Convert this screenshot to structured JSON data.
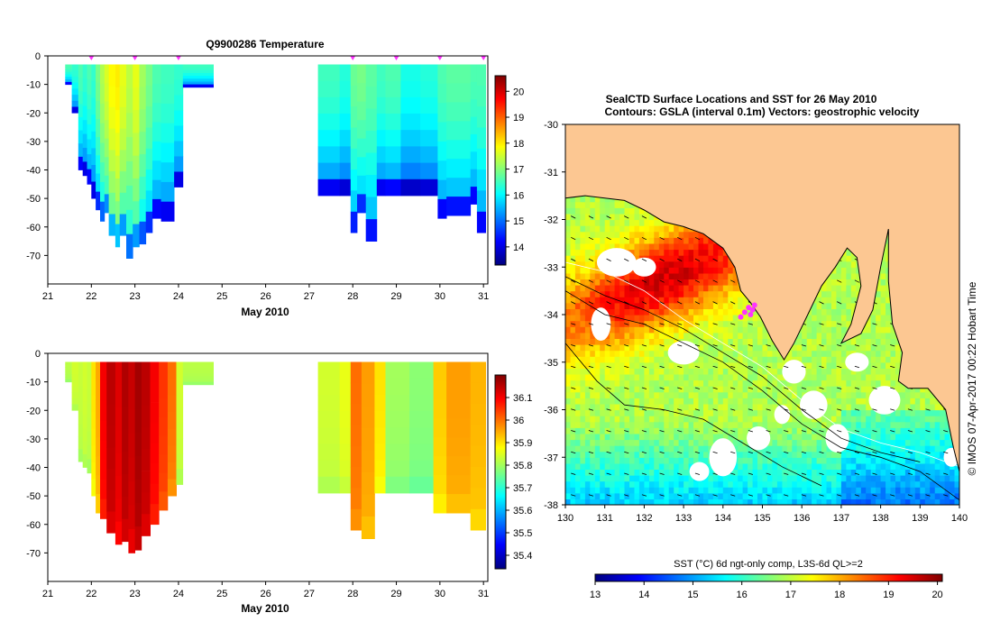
{
  "chart_data": [
    {
      "id": "temperature",
      "type": "heatmap",
      "title": "Q9900286  Temperature",
      "xlabel": "May 2010",
      "ylabel": "",
      "xlim": [
        21,
        31.1
      ],
      "ylim": [
        -80,
        0
      ],
      "x_ticks": [
        "21",
        "22",
        "23",
        "24",
        "25",
        "26",
        "27",
        "28",
        "29",
        "30",
        "31"
      ],
      "y_ticks": [
        "0",
        "-10",
        "-20",
        "-30",
        "-40",
        "-50",
        "-60",
        "-70"
      ],
      "colorbar": {
        "min": 13.3,
        "max": 20.6,
        "ticks": [
          "14",
          "15",
          "16",
          "17",
          "18",
          "19",
          "20"
        ],
        "tick_values": [
          14,
          15,
          16,
          17,
          18,
          19,
          20
        ]
      },
      "profile_markers_day": [
        22.0,
        23.0,
        24.0,
        28.0,
        29.0,
        30.0,
        31.0
      ],
      "columns": [
        {
          "x0": 21.4,
          "x1": 21.55,
          "depth": -10,
          "value": 16.6
        },
        {
          "x0": 21.55,
          "x1": 21.7,
          "depth": -20,
          "value": 16.4
        },
        {
          "x0": 21.7,
          "x1": 21.8,
          "depth": -40,
          "value": 16.6
        },
        {
          "x0": 21.8,
          "x1": 21.9,
          "depth": -42,
          "value": 16.4
        },
        {
          "x0": 21.9,
          "x1": 22.0,
          "depth": -45,
          "value": 16.6
        },
        {
          "x0": 22.0,
          "x1": 22.1,
          "depth": -50,
          "value": 16.4
        },
        {
          "x0": 22.1,
          "x1": 22.2,
          "depth": -54,
          "value": 16.9
        },
        {
          "x0": 22.2,
          "x1": 22.3,
          "depth": -58,
          "value": 17.3
        },
        {
          "x0": 22.3,
          "x1": 22.4,
          "depth": -55,
          "value": 17.6
        },
        {
          "x0": 22.4,
          "x1": 22.55,
          "depth": -63,
          "value": 17.9
        },
        {
          "x0": 22.55,
          "x1": 22.65,
          "depth": -67,
          "value": 18.0
        },
        {
          "x0": 22.65,
          "x1": 22.8,
          "depth": -63,
          "value": 17.7
        },
        {
          "x0": 22.8,
          "x1": 22.95,
          "depth": -71,
          "value": 17.4
        },
        {
          "x0": 22.95,
          "x1": 23.1,
          "depth": -67,
          "value": 17.7
        },
        {
          "x0": 23.1,
          "x1": 23.25,
          "depth": -66,
          "value": 17.2
        },
        {
          "x0": 23.25,
          "x1": 23.4,
          "depth": -62,
          "value": 16.9
        },
        {
          "x0": 23.4,
          "x1": 23.6,
          "depth": -57,
          "value": 16.6
        },
        {
          "x0": 23.6,
          "x1": 23.9,
          "depth": -58,
          "value": 16.5
        },
        {
          "x0": 23.9,
          "x1": 24.1,
          "depth": -46,
          "value": 16.4
        },
        {
          "x0": 24.1,
          "x1": 24.8,
          "depth": -11,
          "value": 16.5
        },
        {
          "x0": 27.2,
          "x1": 27.7,
          "depth": -49,
          "value": 16.5
        },
        {
          "x0": 27.7,
          "x1": 27.95,
          "depth": -49,
          "value": 16.3
        },
        {
          "x0": 27.95,
          "x1": 28.1,
          "depth": -62,
          "value": 16.8
        },
        {
          "x0": 28.1,
          "x1": 28.3,
          "depth": -55,
          "value": 16.9
        },
        {
          "x0": 28.3,
          "x1": 28.55,
          "depth": -65,
          "value": 16.7
        },
        {
          "x0": 28.55,
          "x1": 28.75,
          "depth": -49,
          "value": 16.5
        },
        {
          "x0": 28.75,
          "x1": 29.1,
          "depth": -49,
          "value": 16.6
        },
        {
          "x0": 29.1,
          "x1": 29.55,
          "depth": -49,
          "value": 16.2
        },
        {
          "x0": 29.55,
          "x1": 29.95,
          "depth": -49,
          "value": 16.3
        },
        {
          "x0": 29.95,
          "x1": 30.15,
          "depth": -57,
          "value": 16.6
        },
        {
          "x0": 30.15,
          "x1": 30.7,
          "depth": -56,
          "value": 16.7
        },
        {
          "x0": 30.7,
          "x1": 30.85,
          "depth": -52,
          "value": 16.6
        },
        {
          "x0": 30.85,
          "x1": 31.05,
          "depth": -62,
          "value": 16.6
        }
      ]
    },
    {
      "id": "salinity",
      "type": "heatmap",
      "title": "",
      "xlabel": "May 2010",
      "ylabel": "",
      "xlim": [
        21,
        31.1
      ],
      "ylim": [
        -80,
        0
      ],
      "x_ticks": [
        "21",
        "22",
        "23",
        "24",
        "25",
        "26",
        "27",
        "28",
        "29",
        "30",
        "31"
      ],
      "y_ticks": [
        "0",
        "-10",
        "-20",
        "-30",
        "-40",
        "-50",
        "-60",
        "-70"
      ],
      "colorbar": {
        "min": 35.34,
        "max": 36.2,
        "ticks": [
          "35.4",
          "35.5",
          "35.6",
          "35.7",
          "35.8",
          "35.9",
          "36",
          "36.1"
        ],
        "tick_values": [
          35.4,
          35.5,
          35.6,
          35.7,
          35.8,
          35.9,
          36.0,
          36.1
        ]
      },
      "columns": [
        {
          "x0": 21.4,
          "x1": 21.55,
          "depth": -10,
          "value": 35.82
        },
        {
          "x0": 21.55,
          "x1": 21.7,
          "depth": -20,
          "value": 35.84
        },
        {
          "x0": 21.7,
          "x1": 21.8,
          "depth": -38,
          "value": 35.83
        },
        {
          "x0": 21.8,
          "x1": 21.9,
          "depth": -40,
          "value": 35.84
        },
        {
          "x0": 21.9,
          "x1": 22.0,
          "depth": -42,
          "value": 35.83
        },
        {
          "x0": 22.0,
          "x1": 22.1,
          "depth": -50,
          "value": 35.9
        },
        {
          "x0": 22.1,
          "x1": 22.2,
          "depth": -56,
          "value": 35.95
        },
        {
          "x0": 22.2,
          "x1": 22.35,
          "depth": -58,
          "value": 36.1
        },
        {
          "x0": 22.35,
          "x1": 22.55,
          "depth": -63,
          "value": 36.15
        },
        {
          "x0": 22.55,
          "x1": 22.7,
          "depth": -67,
          "value": 36.12
        },
        {
          "x0": 22.7,
          "x1": 22.85,
          "depth": -66,
          "value": 36.16
        },
        {
          "x0": 22.85,
          "x1": 23.0,
          "depth": -70,
          "value": 36.14
        },
        {
          "x0": 23.0,
          "x1": 23.15,
          "depth": -69,
          "value": 36.17
        },
        {
          "x0": 23.15,
          "x1": 23.35,
          "depth": -64,
          "value": 36.15
        },
        {
          "x0": 23.35,
          "x1": 23.55,
          "depth": -60,
          "value": 36.1
        },
        {
          "x0": 23.55,
          "x1": 23.75,
          "depth": -55,
          "value": 36.05
        },
        {
          "x0": 23.75,
          "x1": 23.95,
          "depth": -50,
          "value": 36.0
        },
        {
          "x0": 23.95,
          "x1": 24.1,
          "depth": -46,
          "value": 35.84
        },
        {
          "x0": 24.1,
          "x1": 24.8,
          "depth": -11,
          "value": 35.82
        },
        {
          "x0": 27.2,
          "x1": 27.7,
          "depth": -49,
          "value": 35.84
        },
        {
          "x0": 27.7,
          "x1": 27.95,
          "depth": -49,
          "value": 35.86
        },
        {
          "x0": 27.95,
          "x1": 28.2,
          "depth": -62,
          "value": 36.0
        },
        {
          "x0": 28.2,
          "x1": 28.5,
          "depth": -65,
          "value": 35.96
        },
        {
          "x0": 28.5,
          "x1": 28.75,
          "depth": -49,
          "value": 35.9
        },
        {
          "x0": 28.75,
          "x1": 29.3,
          "depth": -49,
          "value": 35.8
        },
        {
          "x0": 29.3,
          "x1": 29.85,
          "depth": -49,
          "value": 35.78
        },
        {
          "x0": 29.85,
          "x1": 30.15,
          "depth": -56,
          "value": 35.92
        },
        {
          "x0": 30.15,
          "x1": 30.7,
          "depth": -56,
          "value": 35.96
        },
        {
          "x0": 30.7,
          "x1": 31.05,
          "depth": -62,
          "value": 35.94
        }
      ]
    },
    {
      "id": "sst_map",
      "type": "heatmap",
      "title": "SealCTD Surface Locations and SST for 26 May 2010",
      "subtitle": "Contours: GSLA (interval 0.1m) Vectors: geostrophic velocity",
      "xlim": [
        130,
        140
      ],
      "ylim": [
        -38,
        -30
      ],
      "x_ticks": [
        "130",
        "131",
        "132",
        "133",
        "134",
        "135",
        "136",
        "137",
        "138",
        "139",
        "140"
      ],
      "y_ticks": [
        "-30",
        "-31",
        "-32",
        "-33",
        "-34",
        "-35",
        "-36",
        "-37",
        "-38"
      ],
      "colorbar": {
        "label": "SST (°C) 6d ngt-only comp, L3S-6d QL>=2",
        "min": 13,
        "max": 20.1,
        "ticks": [
          "13",
          "14",
          "15",
          "16",
          "17",
          "18",
          "19",
          "20"
        ],
        "tick_values": [
          13,
          14,
          15,
          16,
          17,
          18,
          19,
          20
        ]
      },
      "seal_locations": [
        {
          "lon": 134.55,
          "lat": -33.95
        },
        {
          "lon": 134.65,
          "lat": -33.85
        },
        {
          "lon": 134.7,
          "lat": -34.0
        },
        {
          "lon": 134.8,
          "lat": -33.8
        },
        {
          "lon": 134.45,
          "lat": -34.05
        },
        {
          "lon": 134.75,
          "lat": -33.9
        }
      ],
      "coastline": [
        [
          130,
          -31.55
        ],
        [
          130.5,
          -31.5
        ],
        [
          131,
          -31.55
        ],
        [
          131.5,
          -31.6
        ],
        [
          132,
          -31.8
        ],
        [
          132.5,
          -32.05
        ],
        [
          133,
          -32.15
        ],
        [
          133.5,
          -32.3
        ],
        [
          134,
          -32.6
        ],
        [
          134.3,
          -33.0
        ],
        [
          134.45,
          -33.5
        ],
        [
          134.7,
          -33.75
        ],
        [
          134.95,
          -34.05
        ],
        [
          135.25,
          -34.55
        ],
        [
          135.55,
          -34.95
        ],
        [
          135.8,
          -34.6
        ],
        [
          136.15,
          -34.0
        ],
        [
          136.5,
          -33.4
        ],
        [
          136.85,
          -33.0
        ],
        [
          137.15,
          -32.6
        ],
        [
          137.4,
          -32.8
        ],
        [
          137.5,
          -33.4
        ],
        [
          137.25,
          -34.2
        ],
        [
          137.0,
          -34.6
        ],
        [
          137.5,
          -34.4
        ],
        [
          137.8,
          -33.9
        ],
        [
          138.0,
          -33.0
        ],
        [
          138.2,
          -32.2
        ],
        [
          138.2,
          -33.3
        ],
        [
          138.3,
          -34.2
        ],
        [
          138.55,
          -34.8
        ],
        [
          138.45,
          -35.4
        ],
        [
          138.7,
          -35.55
        ],
        [
          139.2,
          -35.55
        ],
        [
          139.65,
          -36.0
        ],
        [
          139.85,
          -36.8
        ],
        [
          140,
          -37.3
        ]
      ],
      "gsla_contours": [
        [
          [
            130,
            -33.5
          ],
          [
            131,
            -34.0
          ],
          [
            132,
            -34.2
          ],
          [
            133,
            -34.6
          ],
          [
            134,
            -35.0
          ],
          [
            135,
            -35.6
          ],
          [
            136,
            -36.3
          ],
          [
            137,
            -36.8
          ],
          [
            138,
            -37.0
          ],
          [
            139,
            -37.3
          ],
          [
            140,
            -37.9
          ]
        ],
        [
          [
            130,
            -33.2
          ],
          [
            131,
            -33.6
          ],
          [
            132,
            -33.9
          ],
          [
            133,
            -34.3
          ],
          [
            134,
            -34.8
          ],
          [
            135,
            -35.3
          ],
          [
            136,
            -36.0
          ],
          [
            137,
            -36.6
          ],
          [
            138,
            -36.9
          ],
          [
            139,
            -37.1
          ]
        ],
        [
          [
            130,
            -34.6
          ],
          [
            130.8,
            -35.4
          ],
          [
            131.5,
            -35.9
          ],
          [
            132.5,
            -36.0
          ],
          [
            133.5,
            -36.2
          ],
          [
            134.5,
            -36.7
          ],
          [
            135.5,
            -37.2
          ],
          [
            136.5,
            -37.6
          ]
        ],
        [
          [
            130,
            -32.9
          ],
          [
            131,
            -33.1
          ],
          [
            132,
            -33.5
          ],
          [
            133,
            -34.1
          ],
          [
            134,
            -34.6
          ],
          [
            135,
            -35.1
          ],
          [
            136,
            -35.8
          ],
          [
            137,
            -36.4
          ],
          [
            138,
            -36.7
          ],
          [
            139,
            -36.9
          ],
          [
            140,
            -37.2
          ]
        ]
      ]
    }
  ],
  "annotations": {
    "credit": "© IMOS 07-Apr-2017 00:22 Hobart Time"
  },
  "palette": {
    "jet": [
      "#00007f",
      "#0000ff",
      "#007fff",
      "#00ffff",
      "#7fff7f",
      "#ffff00",
      "#ff7f00",
      "#ff0000",
      "#7f0000"
    ],
    "land": "#fcc792",
    "marker": "#ff33ff"
  }
}
